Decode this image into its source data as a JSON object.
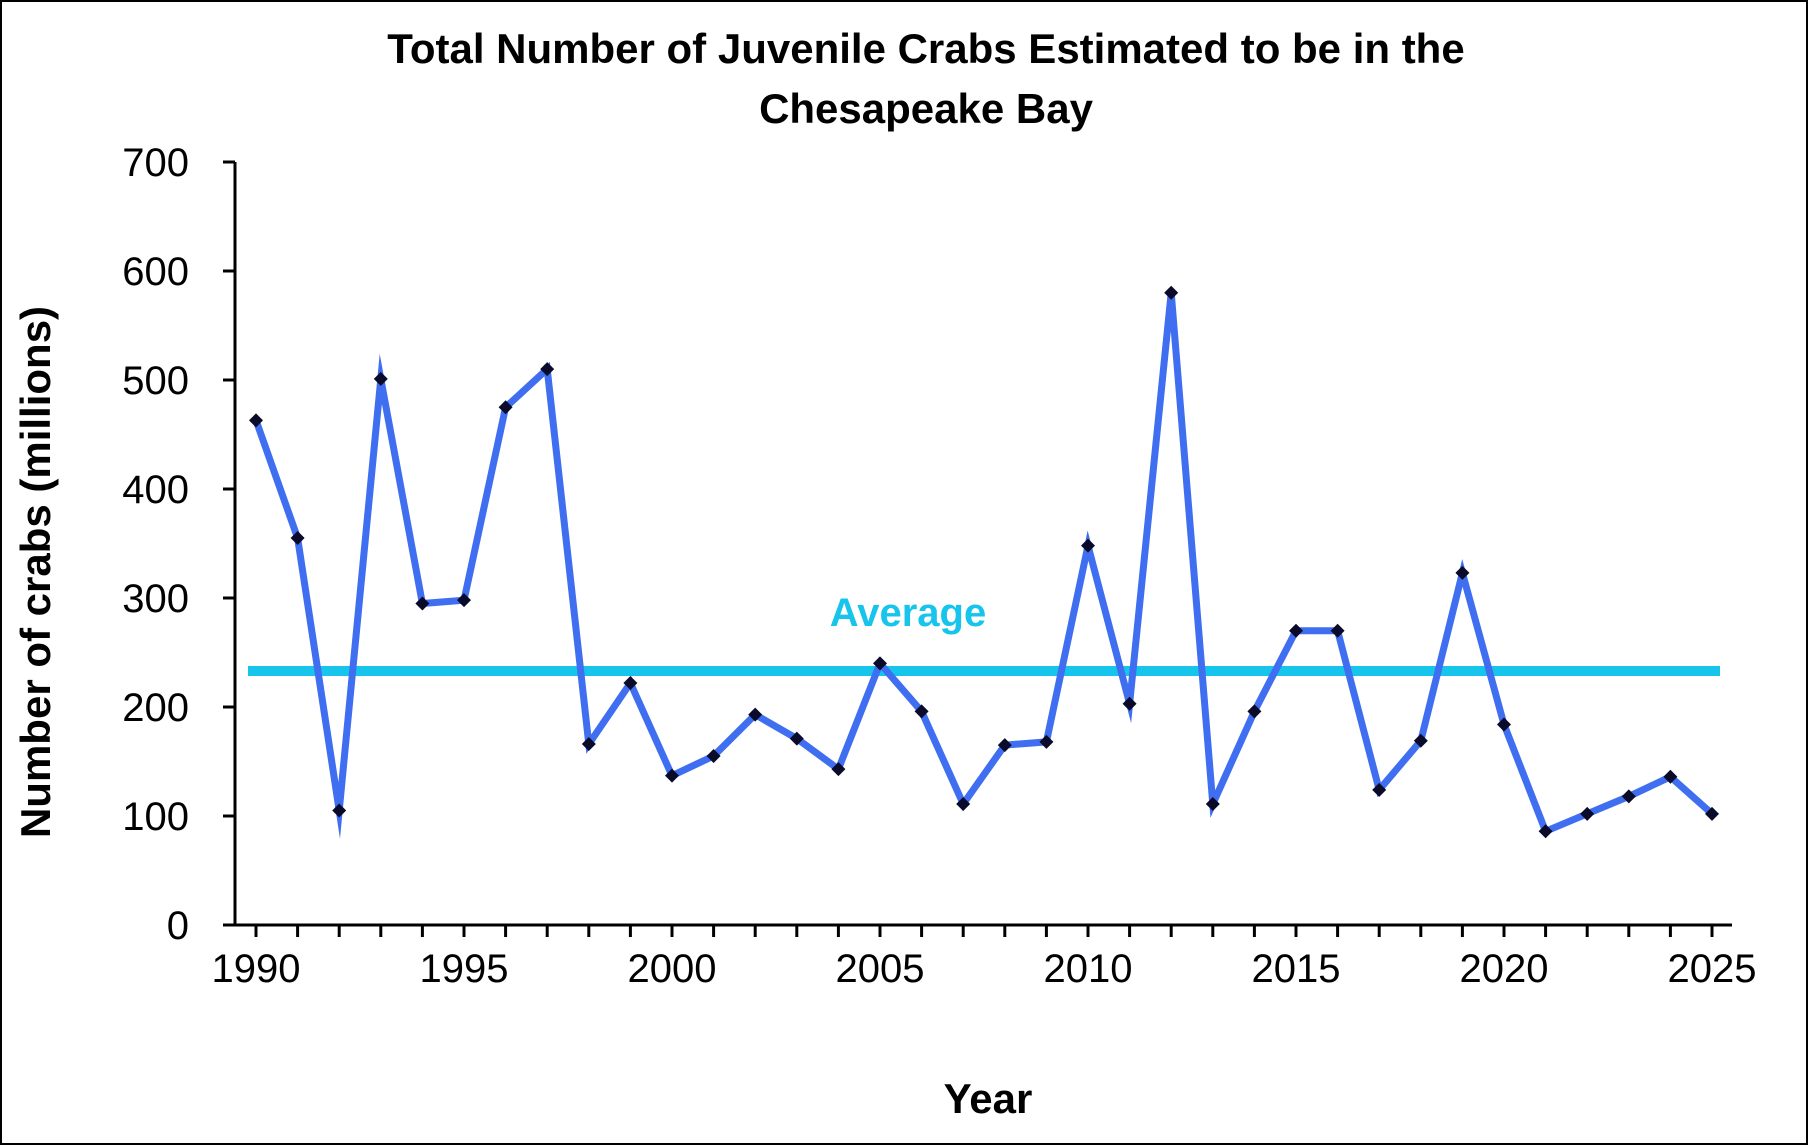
{
  "chart_data": {
    "type": "line",
    "title_lines": [
      "Total Number of Juvenile Crabs Estimated to be in the",
      "Chesapeake Bay"
    ],
    "xlabel": "Year",
    "ylabel": "Number of crabs (millions)",
    "xlim": [
      1990,
      2025
    ],
    "ylim": [
      0,
      700
    ],
    "x_ticks": [
      "1990",
      "1995",
      "2000",
      "2005",
      "2010",
      "2015",
      "2020",
      "2025"
    ],
    "x_tick_values": [
      1990,
      1995,
      2000,
      2005,
      2010,
      2015,
      2020,
      2025
    ],
    "y_ticks": [
      "0",
      "100",
      "200",
      "300",
      "400",
      "500",
      "600",
      "700"
    ],
    "y_tick_values": [
      0,
      100,
      200,
      300,
      400,
      500,
      600,
      700
    ],
    "grid": false,
    "series": [
      {
        "color": "#3f6ff0",
        "marker_color": "#0a0a2a",
        "x": [
          1990,
          1991,
          1992,
          1993,
          1994,
          1995,
          1996,
          1997,
          1998,
          1999,
          2000,
          2001,
          2002,
          2003,
          2004,
          2005,
          2006,
          2007,
          2008,
          2009,
          2010,
          2011,
          2012,
          2013,
          2014,
          2015,
          2016,
          2017,
          2018,
          2019,
          2020,
          2021,
          2022,
          2023,
          2024,
          2025
        ],
        "values": [
          463,
          355,
          105,
          501,
          295,
          298,
          475,
          510,
          166,
          222,
          137,
          155,
          193,
          171,
          143,
          240,
          196,
          111,
          165,
          168,
          348,
          203,
          580,
          111,
          196,
          270,
          270,
          124,
          169,
          323,
          184,
          86,
          102,
          118,
          136,
          102
        ]
      }
    ],
    "reference_line": {
      "name": "Average",
      "value": 233,
      "color": "#16c4ec"
    }
  }
}
